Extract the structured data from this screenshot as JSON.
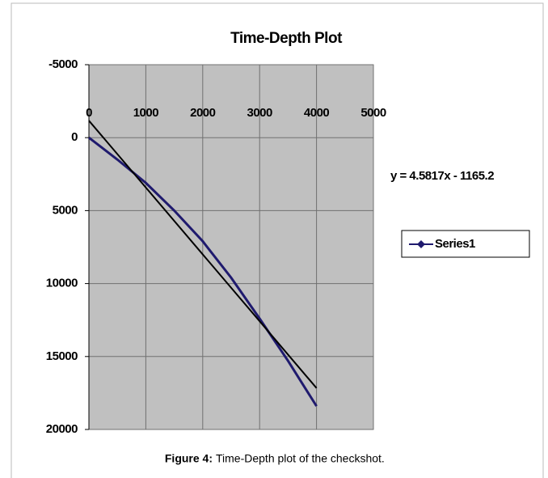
{
  "chart_data": {
    "type": "line",
    "title": "Time-Depth Plot",
    "x": [
      0,
      500,
      1000,
      1500,
      2000,
      2500,
      3000,
      3500,
      4000
    ],
    "series": [
      {
        "name": "Series1",
        "color": "#1f1a6e",
        "values": [
          0,
          1500,
          3100,
          5000,
          7100,
          9600,
          12400,
          15300,
          18400
        ]
      }
    ],
    "xlim": [
      0,
      5000
    ],
    "xticks": [
      0,
      1000,
      2000,
      3000,
      4000,
      5000
    ],
    "ylim": [
      -5000,
      20000
    ],
    "yticks": [
      -5000,
      0,
      5000,
      10000,
      15000,
      20000
    ],
    "y_inverted": true,
    "grid": true,
    "plot_background": "#c0c0c0",
    "legend": "right",
    "trendline": {
      "equation": "y = 4.5817x - 1165.2",
      "slope": 4.5817,
      "intercept": -1165.2,
      "color": "#000000"
    },
    "caption_label": "Figure 4:",
    "caption": "Time-Depth plot of the checkshot."
  }
}
